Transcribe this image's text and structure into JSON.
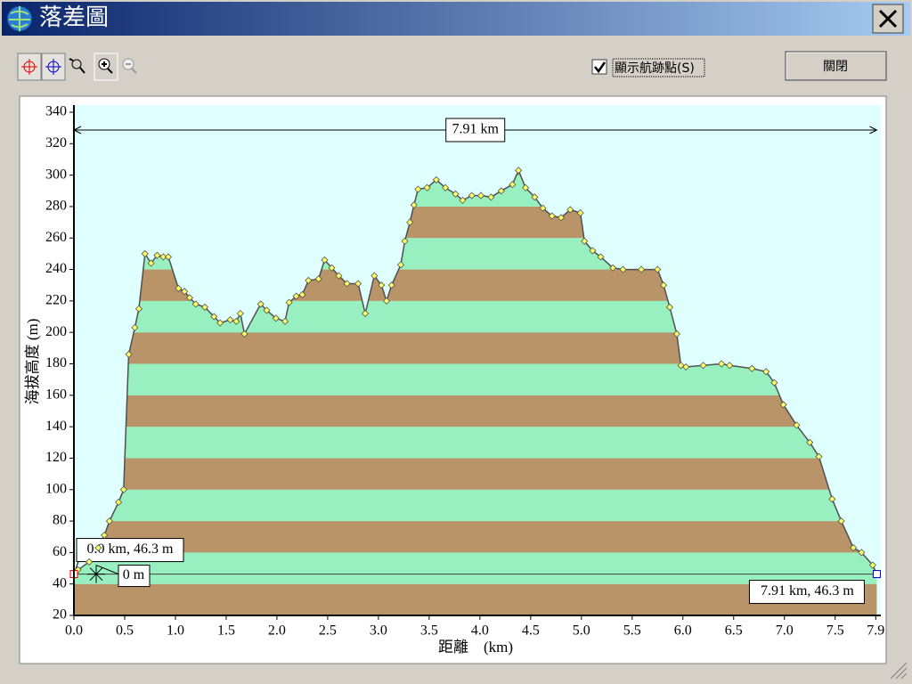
{
  "window": {
    "title": "落差圖"
  },
  "toolbar": {
    "checkbox_label": "顯示航跡點(S)",
    "checked": true,
    "close_button": "關閉"
  },
  "chart": {
    "type": "area",
    "x_label": "距離　(km)",
    "y_label": "海拔高度 (m)",
    "x": [
      0,
      0.04,
      0.15,
      0.24,
      0.3,
      0.35,
      0.44,
      0.49,
      0.54,
      0.6,
      0.64,
      0.7,
      0.76,
      0.82,
      0.88,
      0.93,
      1.03,
      1.09,
      1.14,
      1.2,
      1.29,
      1.38,
      1.44,
      1.54,
      1.6,
      1.64,
      1.68,
      1.84,
      1.9,
      1.99,
      2.08,
      2.12,
      2.19,
      2.25,
      2.31,
      2.41,
      2.47,
      2.54,
      2.61,
      2.69,
      2.8,
      2.87,
      2.96,
      3.03,
      3.08,
      3.13,
      3.22,
      3.26,
      3.31,
      3.35,
      3.39,
      3.48,
      3.57,
      3.66,
      3.76,
      3.83,
      3.92,
      4.01,
      4.11,
      4.21,
      4.32,
      4.38,
      4.45,
      4.54,
      4.62,
      4.71,
      4.8,
      4.89,
      4.99,
      5.03,
      5.11,
      5.19,
      5.31,
      5.41,
      5.59,
      5.75,
      5.81,
      5.87,
      5.94,
      5.98,
      6.03,
      6.2,
      6.38,
      6.46,
      6.68,
      6.82,
      6.9,
      6.99,
      7.12,
      7.25,
      7.34,
      7.47,
      7.56,
      7.68,
      7.76,
      7.87,
      7.91
    ],
    "y": [
      46.3,
      49,
      54,
      63,
      71,
      80,
      92,
      100,
      186,
      203,
      215,
      250,
      244,
      249,
      248,
      248,
      228,
      226,
      222,
      218,
      216,
      210,
      206,
      208,
      207,
      212,
      199,
      218,
      214,
      209,
      207,
      219,
      223,
      224,
      233,
      234,
      246,
      241,
      236,
      231,
      231,
      212,
      236,
      230,
      220,
      230,
      243,
      258,
      270,
      281,
      291,
      292,
      297,
      292,
      288,
      284,
      287,
      287,
      286,
      290,
      294,
      303,
      292,
      286,
      279,
      274,
      273,
      278,
      276,
      258,
      252,
      248,
      241,
      240,
      240,
      240,
      230,
      216,
      199,
      179,
      178,
      179,
      180,
      179,
      177,
      175,
      168,
      154,
      141,
      130,
      121,
      94,
      80,
      63,
      60,
      52,
      46.3
    ],
    "xlim": [
      0,
      7.95
    ],
    "ylim": [
      20,
      340
    ],
    "xticks": [
      {
        "value": 0,
        "label": "0.0"
      },
      0.5,
      {
        "value": 1,
        "label": "1.0"
      },
      1.5,
      {
        "value": 2,
        "label": "2.0"
      },
      2.5,
      {
        "value": 3,
        "label": "3.0"
      },
      3.5,
      {
        "value": 4,
        "label": "4.0"
      },
      4.5,
      {
        "value": 5,
        "label": "5.0"
      },
      5.5,
      {
        "value": 6,
        "label": "6.0"
      },
      6.5,
      {
        "value": 7,
        "label": "7.0"
      },
      7.5,
      7.9
    ],
    "yticks": [
      20,
      40,
      60,
      80,
      100,
      120,
      140,
      160,
      180,
      200,
      220,
      240,
      260,
      280,
      300,
      320,
      340
    ],
    "background": "#e0ffff",
    "band_colors": [
      "#b89468",
      "#98f0c0"
    ],
    "line_color": "#505050",
    "marker_color": "#ffff66",
    "annotations": {
      "span": "7.91 km",
      "start": "0.0 km, 46.3 m",
      "end": "7.91 km, 46.3 m",
      "difference": "0 m"
    }
  }
}
